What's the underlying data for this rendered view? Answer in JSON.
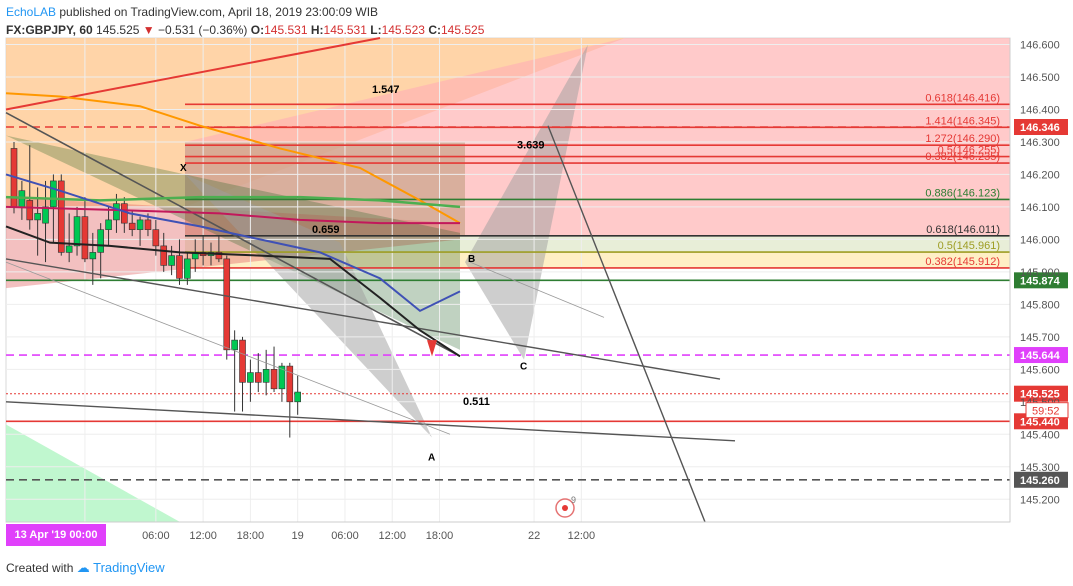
{
  "header": {
    "brand": "EchoLAB",
    "published": " published on TradingView.com, April 18, 2019 23:00:09 WIB"
  },
  "ohlc": {
    "symbol": "FX:GBPJPY, 60",
    "last": "145.525",
    "arrow": "▼",
    "change": "−0.531 (−0.36%)",
    "o_label": "O:",
    "o": "145.531",
    "h_label": "H:",
    "h": "145.531",
    "l_label": "L:",
    "l": "145.523",
    "c_label": "C:",
    "c": "145.525"
  },
  "footer": {
    "created_with": "Created with",
    "brand": "TradingView"
  },
  "date_badge": "13 Apr '19   00:00",
  "colors": {
    "up": "#00c853",
    "down": "#e53935",
    "fib_red": "#e53935",
    "magenta": "#e040fb",
    "green_line": "#4caf50",
    "orange": "#ff9800",
    "blue_ma": "#3f51b5",
    "black_ma": "#222222"
  },
  "chart_data": {
    "type": "candlestick",
    "symbol": "FX:GBPJPY",
    "timeframe": "60",
    "ylim": [
      145.13,
      146.62
    ],
    "y_ticks": [
      "146.600",
      "146.500",
      "146.400",
      "146.300",
      "146.200",
      "146.100",
      "146.000",
      "145.900",
      "145.800",
      "145.700",
      "145.600",
      "145.500",
      "145.400",
      "145.300",
      "145.200"
    ],
    "x_ticks": [
      {
        "label": "18",
        "i": 9
      },
      {
        "label": "06:00",
        "i": 18
      },
      {
        "label": "12:00",
        "i": 24
      },
      {
        "label": "18:00",
        "i": 30
      },
      {
        "label": "19",
        "i": 36
      },
      {
        "label": "06:00",
        "i": 42
      },
      {
        "label": "12:00",
        "i": 48
      },
      {
        "label": "18:00",
        "i": 54
      },
      {
        "label": "22",
        "i": 66
      },
      {
        "label": "12:00",
        "i": 72
      }
    ],
    "candles": [
      {
        "o": 146.28,
        "h": 146.3,
        "l": 146.08,
        "c": 146.1
      },
      {
        "o": 146.1,
        "h": 146.18,
        "l": 146.06,
        "c": 146.15
      },
      {
        "o": 146.12,
        "h": 146.29,
        "l": 146.03,
        "c": 146.06
      },
      {
        "o": 146.06,
        "h": 146.16,
        "l": 145.95,
        "c": 146.08
      },
      {
        "o": 146.05,
        "h": 146.18,
        "l": 145.93,
        "c": 146.1
      },
      {
        "o": 146.1,
        "h": 146.2,
        "l": 145.99,
        "c": 146.18
      },
      {
        "o": 146.18,
        "h": 146.2,
        "l": 145.95,
        "c": 145.96
      },
      {
        "o": 145.96,
        "h": 146.08,
        "l": 145.93,
        "c": 145.98
      },
      {
        "o": 145.98,
        "h": 146.1,
        "l": 145.95,
        "c": 146.07
      },
      {
        "o": 146.07,
        "h": 146.13,
        "l": 145.93,
        "c": 145.94
      },
      {
        "o": 145.94,
        "h": 146.02,
        "l": 145.86,
        "c": 145.96
      },
      {
        "o": 145.96,
        "h": 146.05,
        "l": 145.88,
        "c": 146.03
      },
      {
        "o": 146.03,
        "h": 146.1,
        "l": 145.98,
        "c": 146.06
      },
      {
        "o": 146.06,
        "h": 146.14,
        "l": 146.02,
        "c": 146.11
      },
      {
        "o": 146.11,
        "h": 146.13,
        "l": 146.02,
        "c": 146.05
      },
      {
        "o": 146.05,
        "h": 146.09,
        "l": 146.01,
        "c": 146.03
      },
      {
        "o": 146.03,
        "h": 146.07,
        "l": 145.98,
        "c": 146.06
      },
      {
        "o": 146.06,
        "h": 146.08,
        "l": 146.01,
        "c": 146.03
      },
      {
        "o": 146.03,
        "h": 146.06,
        "l": 145.95,
        "c": 145.98
      },
      {
        "o": 145.98,
        "h": 146.02,
        "l": 145.9,
        "c": 145.92
      },
      {
        "o": 145.92,
        "h": 145.98,
        "l": 145.89,
        "c": 145.95
      },
      {
        "o": 145.95,
        "h": 146.0,
        "l": 145.86,
        "c": 145.88
      },
      {
        "o": 145.88,
        "h": 145.96,
        "l": 145.86,
        "c": 145.94
      },
      {
        "o": 145.94,
        "h": 146.0,
        "l": 145.9,
        "c": 145.96
      },
      {
        "o": 145.96,
        "h": 146.01,
        "l": 145.92,
        "c": 145.95
      },
      {
        "o": 145.95,
        "h": 145.99,
        "l": 145.92,
        "c": 145.96
      },
      {
        "o": 145.96,
        "h": 146.01,
        "l": 145.93,
        "c": 145.94
      },
      {
        "o": 145.94,
        "h": 145.95,
        "l": 145.63,
        "c": 145.66
      },
      {
        "o": 145.66,
        "h": 145.72,
        "l": 145.47,
        "c": 145.69
      },
      {
        "o": 145.69,
        "h": 145.7,
        "l": 145.47,
        "c": 145.56
      },
      {
        "o": 145.56,
        "h": 145.63,
        "l": 145.5,
        "c": 145.59
      },
      {
        "o": 145.59,
        "h": 145.65,
        "l": 145.53,
        "c": 145.56
      },
      {
        "o": 145.56,
        "h": 145.66,
        "l": 145.52,
        "c": 145.6
      },
      {
        "o": 145.6,
        "h": 145.67,
        "l": 145.53,
        "c": 145.54
      },
      {
        "o": 145.54,
        "h": 145.62,
        "l": 145.5,
        "c": 145.61
      },
      {
        "o": 145.61,
        "h": 145.62,
        "l": 145.39,
        "c": 145.5
      },
      {
        "o": 145.5,
        "h": 145.58,
        "l": 145.46,
        "c": 145.53
      }
    ],
    "horizontal_levels": [
      {
        "price": 146.416,
        "label": "0.618(146.416)",
        "color": "#e53935",
        "style": "solid"
      },
      {
        "price": 146.346,
        "label": "146.346",
        "color": "#e53935",
        "style": "dashed",
        "badge": true
      },
      {
        "price": 146.345,
        "label": "1.414(146.345)",
        "color": "#e53935",
        "style": "solid"
      },
      {
        "price": 146.29,
        "label": "1.272(146.290)",
        "color": "#e53935",
        "style": "solid"
      },
      {
        "price": 146.255,
        "label": "0.5(146.255)",
        "color": "#e53935",
        "style": "solid"
      },
      {
        "price": 146.235,
        "label": "0.382(146.235)",
        "color": "#e53935",
        "style": "solid"
      },
      {
        "price": 146.123,
        "label": "0.886(146.123)",
        "color": "#2e7d32",
        "style": "solid"
      },
      {
        "price": 146.011,
        "label": "0.618(146.011)",
        "color": "#333333",
        "style": "solid"
      },
      {
        "price": 145.961,
        "label": "0.5(145.961)",
        "color": "#9e9d24",
        "style": "solid"
      },
      {
        "price": 145.912,
        "label": "0.382(145.912)",
        "color": "#e53935",
        "style": "solid"
      },
      {
        "price": 145.874,
        "label": "145.874",
        "color": "#2e7d32",
        "style": "solid",
        "badge": true
      },
      {
        "price": 145.644,
        "label": "145.644",
        "color": "#e040fb",
        "style": "dashed",
        "badge": true
      },
      {
        "price": 145.525,
        "label": "145.525",
        "color": "#e53935",
        "style": "dotted",
        "badge": true
      },
      {
        "price": 145.44,
        "label": "145.440",
        "color": "#e53935",
        "style": "solid",
        "badge": true
      },
      {
        "price": 145.26,
        "label": "145.260",
        "color": "#555555",
        "style": "dashed",
        "badge": true
      }
    ],
    "countdown": "59:52",
    "pattern_labels": {
      "X": "X",
      "A": "A",
      "B": "B",
      "C": "C"
    },
    "ratio_labels": [
      "1.547",
      "3.639",
      "0.659",
      "0.511"
    ],
    "event_marker": "9"
  }
}
